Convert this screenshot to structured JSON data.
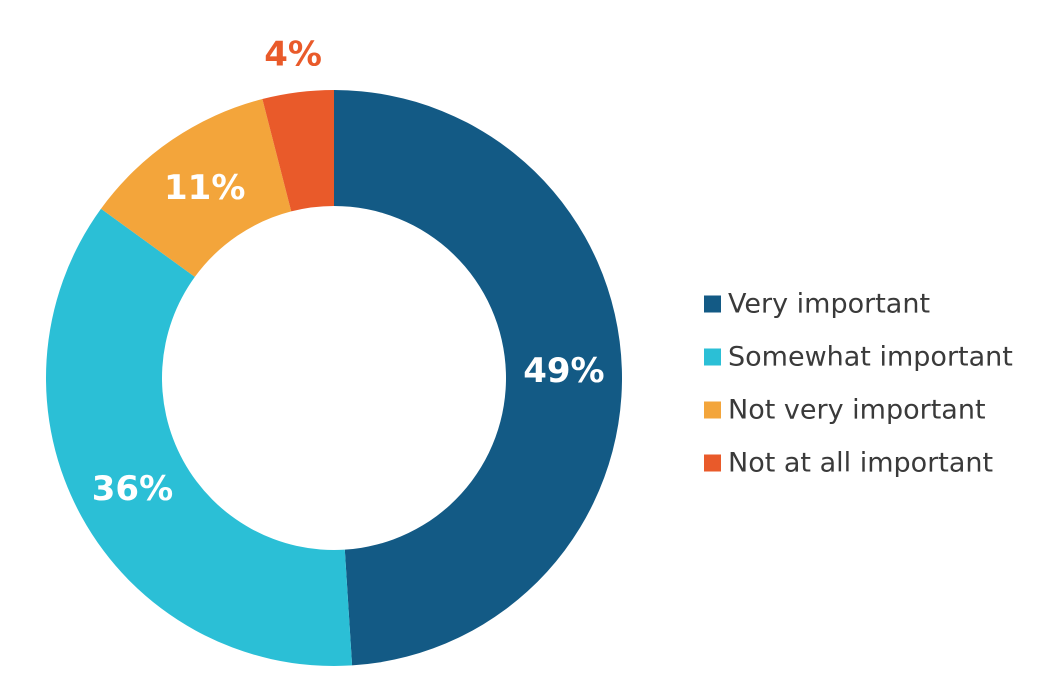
{
  "chart_data": {
    "type": "pie",
    "variant": "donut",
    "categories": [
      "Very important",
      "Somewhat important",
      "Not very important",
      "Not at all important"
    ],
    "values": [
      49,
      36,
      11,
      4
    ],
    "value_labels": [
      "49%",
      "36%",
      "11%",
      "4%"
    ],
    "colors": [
      "#135a85",
      "#2bbfd6",
      "#f3a53b",
      "#e95a2a"
    ],
    "label_colors": [
      "#ffffff",
      "#ffffff",
      "#ffffff",
      "#e95a2a"
    ],
    "legend_position": "right",
    "title": ""
  }
}
